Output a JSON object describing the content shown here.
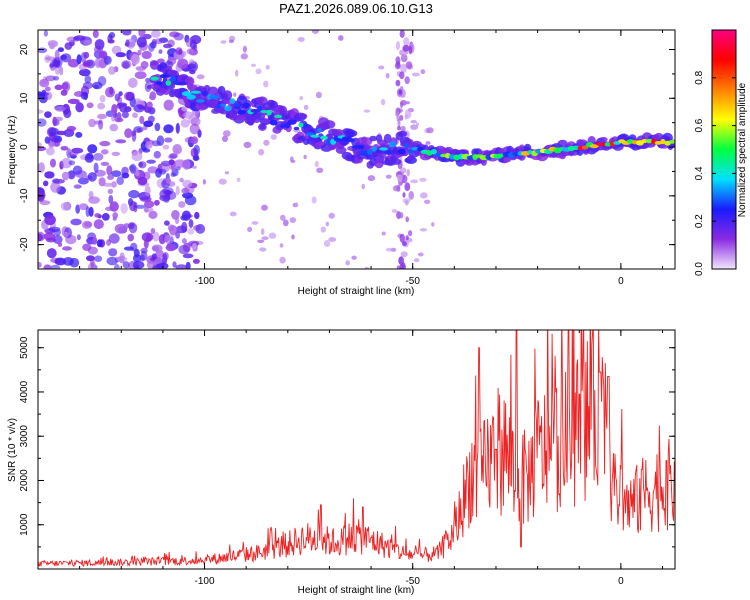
{
  "chart_data": [
    {
      "type": "heatmap",
      "title": "PAZ1.2026.089.06.10.G13",
      "xlabel": "Height of straight line (km)",
      "ylabel": "Frequency (Hz)",
      "xlim": [
        -140,
        13
      ],
      "ylim": [
        -25,
        24
      ],
      "xticks": [
        -100,
        -50,
        0
      ],
      "xtick_labels": [
        "-100",
        "-50",
        "0"
      ],
      "yticks": [
        -20,
        -10,
        0,
        10,
        20
      ],
      "ytick_labels": [
        "-20",
        "-10",
        "0",
        "10",
        "20"
      ],
      "colorbar": {
        "label": "Normalized spectral amplitude",
        "range": [
          0,
          1
        ],
        "ticks": [
          0.0,
          0.2,
          0.4,
          0.6,
          0.8
        ],
        "tick_labels": [
          "0.0",
          "0.2",
          "0.4",
          "0.6",
          "0.8"
        ],
        "colors": [
          "#f2e6ff",
          "#8a2be2",
          "#1a1aff",
          "#00e0ff",
          "#00ff40",
          "#ffff00",
          "#ff8000",
          "#ff0000",
          "#ff0080"
        ]
      },
      "ridge_frequency": {
        "x": [
          -110,
          -100,
          -90,
          -80,
          -70,
          -60,
          -52,
          -40,
          -30,
          -20,
          -10,
          0,
          13
        ],
        "y": [
          14,
          10,
          8,
          5,
          2,
          -1,
          0,
          -2,
          -2,
          -1,
          0,
          1,
          1
        ]
      },
      "noise_band_x": [
        -140,
        -105
      ],
      "vertical_streak_x": -52
    },
    {
      "type": "line",
      "xlabel": "Height of straight line (km)",
      "ylabel": "SNR (10 * v/v)",
      "xlim": [
        -140,
        13
      ],
      "ylim": [
        0,
        5400
      ],
      "xticks": [
        -100,
        -50,
        0
      ],
      "xtick_labels": [
        "-100",
        "-50",
        "0"
      ],
      "yticks": [
        1000,
        2000,
        3000,
        4000,
        5000
      ],
      "ytick_labels": [
        "1000",
        "2000",
        "3000",
        "4000",
        "5000"
      ],
      "color": "#ee2222",
      "envelope": {
        "x": [
          -140,
          -120,
          -100,
          -92,
          -88,
          -84,
          -80,
          -76,
          -72,
          -68,
          -64,
          -60,
          -56,
          -52,
          -48,
          -44,
          -40,
          -38,
          -36,
          -34,
          -32,
          -30,
          -28,
          -26,
          -24,
          -22,
          -20,
          -16,
          -12,
          -8,
          -6,
          -4,
          -3,
          -2,
          0,
          2,
          6,
          10,
          13
        ],
        "y": [
          120,
          150,
          200,
          300,
          350,
          450,
          550,
          700,
          650,
          600,
          750,
          650,
          500,
          350,
          300,
          350,
          800,
          1500,
          2200,
          2000,
          2400,
          2600,
          2700,
          2300,
          2000,
          2100,
          2600,
          2800,
          3000,
          3400,
          3600,
          3800,
          3500,
          1700,
          1700,
          1400,
          1700,
          1900,
          1900
        ]
      },
      "spikes": [
        {
          "x": -72,
          "y": 1450
        },
        {
          "x": -62,
          "y": 1400
        },
        {
          "x": -34,
          "y": 5000
        },
        {
          "x": -30,
          "y": 2700
        },
        {
          "x": -25,
          "y": 5400
        },
        {
          "x": -24,
          "y": 500
        },
        {
          "x": -10,
          "y": 3950
        },
        {
          "x": -5,
          "y": 4450
        },
        {
          "x": -3,
          "y": 4350
        },
        {
          "x": 5,
          "y": 2250
        },
        {
          "x": 11,
          "y": 2450
        }
      ]
    }
  ]
}
